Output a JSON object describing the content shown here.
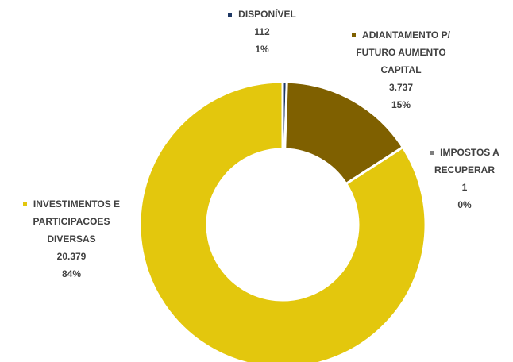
{
  "chart_data": {
    "type": "donut",
    "categories": [
      "DISPONÍVEL",
      "ADIANTAMENTO P/ FUTURO AUMENTO CAPITAL",
      "IMPOSTOS A RECUPERAR",
      "INVESTIMENTOS E PARTICIPACOES DIVERSAS"
    ],
    "values": [
      112,
      3737,
      1,
      20379
    ],
    "value_labels": [
      "112",
      "3.737",
      "1",
      "20.379"
    ],
    "percents": [
      1,
      15,
      0,
      84
    ],
    "percent_labels": [
      "1%",
      "15%",
      "0%",
      "84%"
    ],
    "colors": [
      "#1f3864",
      "#7f6000",
      "#7f7f7f",
      "#e3c70d"
    ]
  }
}
